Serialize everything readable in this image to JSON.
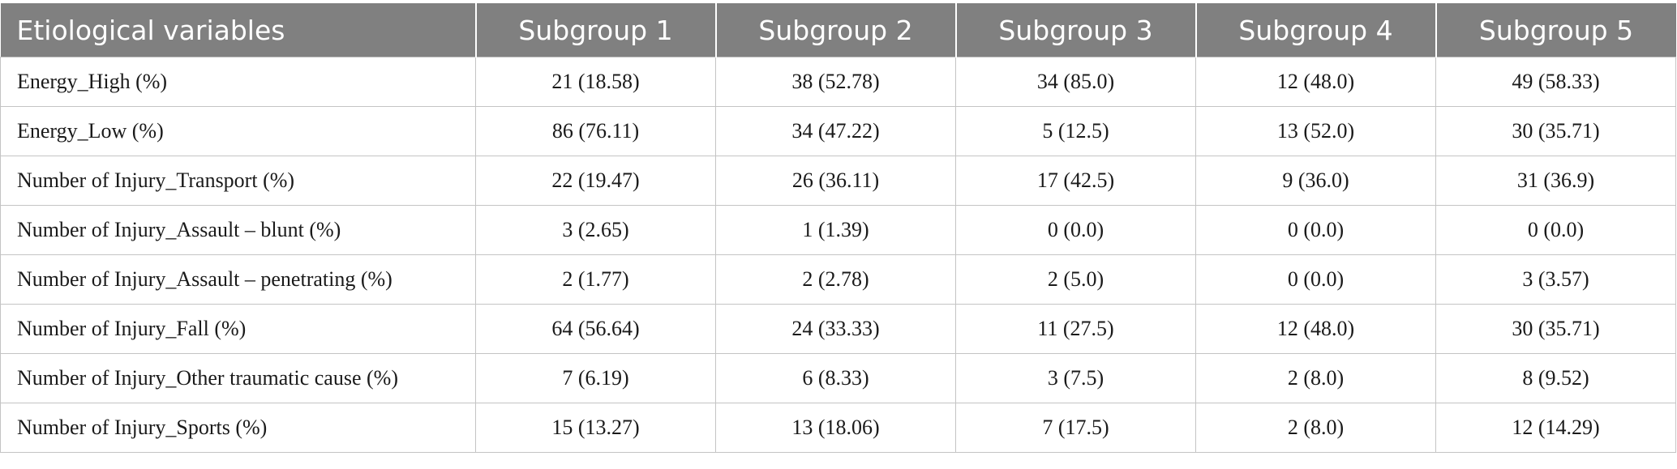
{
  "table": {
    "headers": [
      "Etiological variables",
      "Subgroup 1",
      "Subgroup 2",
      "Subgroup 3",
      "Subgroup 4",
      "Subgroup 5"
    ],
    "rows": [
      [
        "Energy_High (%)",
        "21 (18.58)",
        "38 (52.78)",
        "34 (85.0)",
        "12 (48.0)",
        "49 (58.33)"
      ],
      [
        "Energy_Low (%)",
        "86 (76.11)",
        "34 (47.22)",
        "5 (12.5)",
        "13 (52.0)",
        "30 (35.71)"
      ],
      [
        "Number of Injury_Transport (%)",
        "22 (19.47)",
        "26 (36.11)",
        "17 (42.5)",
        "9 (36.0)",
        "31 (36.9)"
      ],
      [
        "Number of Injury_Assault – blunt (%)",
        "3 (2.65)",
        "1 (1.39)",
        "0 (0.0)",
        "0 (0.0)",
        "0 (0.0)"
      ],
      [
        "Number of Injury_Assault – penetrating (%)",
        "2 (1.77)",
        "2 (2.78)",
        "2 (5.0)",
        "0 (0.0)",
        "3 (3.57)"
      ],
      [
        "Number of Injury_Fall (%)",
        "64 (56.64)",
        "24 (33.33)",
        "11 (27.5)",
        "12 (48.0)",
        "30 (35.71)"
      ],
      [
        "Number of Injury_Other traumatic cause (%)",
        "7 (6.19)",
        "6 (8.33)",
        "3 (7.5)",
        "2 (8.0)",
        "8 (9.52)"
      ],
      [
        "Number of Injury_Sports (%)",
        "15 (13.27)",
        "13 (18.06)",
        "7 (17.5)",
        "2 (8.0)",
        "12 (14.29)"
      ]
    ]
  },
  "colors": {
    "header_bg": "#808080",
    "header_text": "#ffffff",
    "grid": "#c4c4c4"
  }
}
